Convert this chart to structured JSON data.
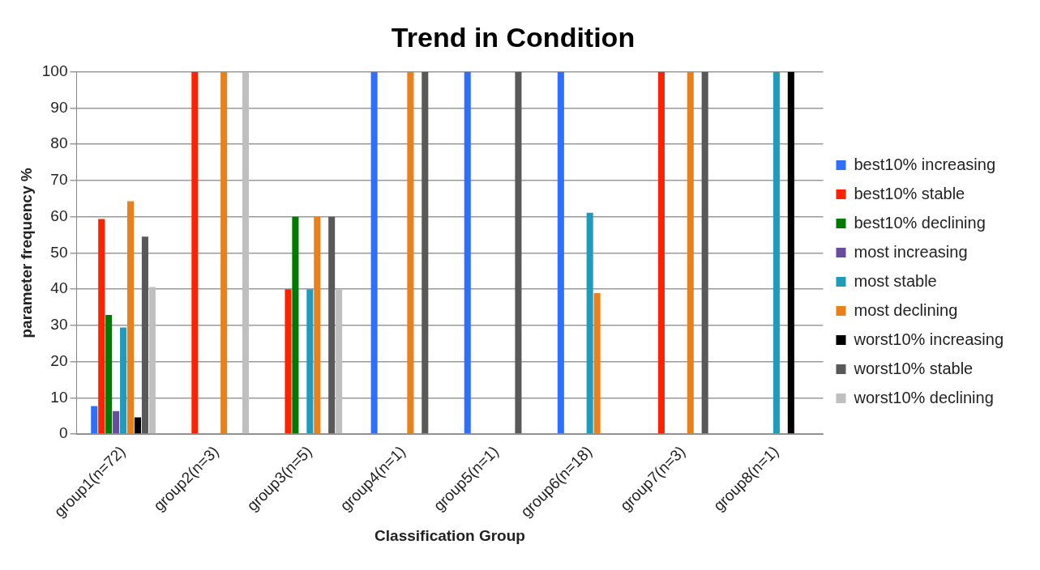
{
  "chart_data": {
    "type": "bar",
    "title": "Trend in Condition",
    "xlabel": "Classification Group",
    "ylabel": "parameter frequency %",
    "categories": [
      "group1(n=72)",
      "group2(n=3)",
      "group3(n=5)",
      "group4(n=1)",
      "group5(n=1)",
      "group6(n=18)",
      "group7(n=3)",
      "group8(n=1)"
    ],
    "series": [
      {
        "name": "best10% increasing",
        "color": "#2f6fff",
        "values": [
          7.7,
          0,
          0,
          100,
          100,
          100,
          0,
          0
        ]
      },
      {
        "name": "best10% stable",
        "color": "#ff2200",
        "values": [
          59.4,
          100,
          40,
          0,
          0,
          0,
          100,
          0
        ]
      },
      {
        "name": "best10% declining",
        "color": "#007a00",
        "values": [
          32.9,
          0,
          60,
          0,
          0,
          0,
          0,
          0
        ]
      },
      {
        "name": "most increasing",
        "color": "#6a4c9c",
        "values": [
          6.3,
          0,
          0,
          0,
          0,
          0,
          0,
          0
        ]
      },
      {
        "name": "most stable",
        "color": "#1f9cbc",
        "values": [
          29.4,
          0,
          40,
          0,
          0,
          61.1,
          0,
          100
        ]
      },
      {
        "name": "most declining",
        "color": "#e8801c",
        "values": [
          64.3,
          100,
          60,
          100,
          0,
          38.9,
          100,
          0
        ]
      },
      {
        "name": "worst10% increasing",
        "color": "#000000",
        "values": [
          4.6,
          0,
          0,
          0,
          0,
          0,
          0,
          100
        ]
      },
      {
        "name": "worst10% stable",
        "color": "#595959",
        "values": [
          54.5,
          0,
          60,
          100,
          100,
          0,
          100,
          0
        ]
      },
      {
        "name": "worst10% declining",
        "color": "#bfbfbf",
        "values": [
          40.6,
          100,
          40,
          0,
          0,
          0,
          0,
          0
        ]
      }
    ],
    "ylim": [
      0,
      100
    ],
    "yticks": [
      0,
      10,
      20,
      30,
      40,
      50,
      60,
      70,
      80,
      90,
      100
    ],
    "grid": "y",
    "legend": "right"
  }
}
